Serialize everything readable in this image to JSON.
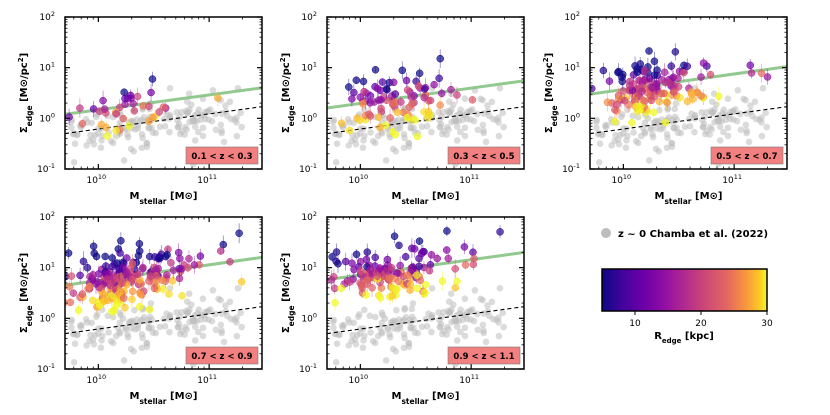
{
  "chart_data": {
    "type": "scatter",
    "figure": {
      "xlabel": "M_stellar [M⊙]",
      "ylabel": "Σ_edge [M⊙/pc²]",
      "xscale": "log",
      "yscale": "log",
      "xlim": [
        5000000000,
        300000000000
      ],
      "ylim": [
        0.1,
        100
      ],
      "x_ticks": [
        {
          "value": 10000000000,
          "label": "10",
          "exp": "10"
        },
        {
          "value": 100000000000,
          "label": "10",
          "exp": "11"
        }
      ],
      "y_ticks": [
        {
          "value": 0.1,
          "label": "10",
          "exp": "-1"
        },
        {
          "value": 1,
          "label": "10",
          "exp": "0"
        },
        {
          "value": 10,
          "label": "10",
          "exp": "1"
        },
        {
          "value": 100,
          "label": "10",
          "exp": "2"
        }
      ]
    },
    "panels": [
      {
        "id": "p1",
        "z_label": "0.1 < z < 0.3",
        "green_fit": {
          "start": [
            5000000000,
            1.2
          ],
          "end": [
            300000000000,
            4.0
          ]
        },
        "reference_line": {
          "start": [
            5000000000,
            0.5
          ],
          "end": [
            300000000000,
            1.7
          ]
        },
        "n_points": 38,
        "n_reference": 160
      },
      {
        "id": "p2",
        "z_label": "0.3 < z < 0.5",
        "green_fit": {
          "start": [
            5000000000,
            1.6
          ],
          "end": [
            300000000000,
            5.5
          ]
        },
        "reference_line": {
          "start": [
            5000000000,
            0.5
          ],
          "end": [
            300000000000,
            1.7
          ]
        },
        "n_points": 90,
        "n_reference": 160
      },
      {
        "id": "p3",
        "z_label": "0.5 < z < 0.7",
        "green_fit": {
          "start": [
            5000000000,
            3.0
          ],
          "end": [
            300000000000,
            10.5
          ]
        },
        "reference_line": {
          "start": [
            5000000000,
            0.5
          ],
          "end": [
            300000000000,
            1.7
          ]
        },
        "n_points": 150,
        "n_reference": 160
      },
      {
        "id": "p4",
        "z_label": "0.7 < z < 0.9",
        "green_fit": {
          "start": [
            5000000000,
            4.5
          ],
          "end": [
            300000000000,
            16.0
          ]
        },
        "reference_line": {
          "start": [
            5000000000,
            0.5
          ],
          "end": [
            300000000000,
            1.7
          ]
        },
        "n_points": 220,
        "n_reference": 160
      },
      {
        "id": "p5",
        "z_label": "0.9 < z < 1.1",
        "green_fit": {
          "start": [
            5000000000,
            5.8
          ],
          "end": [
            300000000000,
            20.0
          ]
        },
        "reference_line": {
          "start": [
            5000000000,
            0.5
          ],
          "end": [
            300000000000,
            1.7
          ]
        },
        "n_points": 150,
        "n_reference": 160
      }
    ],
    "legend": {
      "marker_color": "#bdbdbd",
      "label": "z ~ 0 Chamba et al. (2022)"
    },
    "colorbar": {
      "label": "R_edge [kpc]",
      "range": [
        5,
        30
      ],
      "ticks": [
        10,
        20,
        30
      ],
      "colormap": "plasma"
    },
    "colors": {
      "green_line": "#7fbf7b",
      "reference_dash": "#000000",
      "reference_points": "#bdbdbd",
      "zlabel_box": "#f28080"
    }
  }
}
